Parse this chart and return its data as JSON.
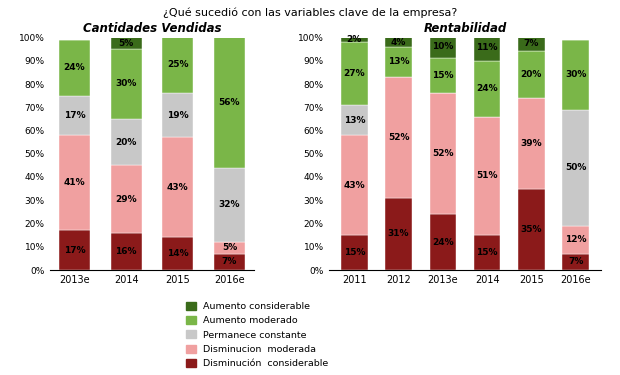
{
  "title": "¿Qué sucedió con las variables clave de la empresa?",
  "left_title": "Cantidades Vendidas",
  "right_title": "Rentabilidad",
  "categories_left": [
    "2013e",
    "2014",
    "2015",
    "2016e"
  ],
  "categories_right": [
    "2011",
    "2012",
    "2013e",
    "2014",
    "2015",
    "2016e"
  ],
  "segments": [
    "Disminución considerable",
    "Disminucion moderada",
    "Permanece constante",
    "Aumento moderado",
    "Aumento considerable"
  ],
  "colors": [
    "#8b1a1a",
    "#f0a0a0",
    "#c8c8c8",
    "#7ab648",
    "#3a6b1a"
  ],
  "left_data": [
    [
      17,
      41,
      17,
      24,
      0
    ],
    [
      16,
      29,
      20,
      30,
      5
    ],
    [
      14,
      43,
      19,
      25,
      0
    ],
    [
      7,
      5,
      32,
      56,
      0
    ]
  ],
  "right_data": [
    [
      15,
      43,
      13,
      27,
      2
    ],
    [
      31,
      52,
      0,
      13,
      4
    ],
    [
      24,
      52,
      0,
      15,
      10
    ],
    [
      15,
      51,
      0,
      24,
      11
    ],
    [
      35,
      39,
      0,
      20,
      7
    ],
    [
      7,
      12,
      50,
      30,
      0
    ]
  ],
  "background_color": "#ffffff",
  "legend_labels": [
    "Aumento considerable",
    "Aumento moderado",
    "Permanece constante",
    "Disminucion  moderada",
    "Disminución  considerable"
  ],
  "legend_colors": [
    "#3a6b1a",
    "#7ab648",
    "#c8c8c8",
    "#f0a0a0",
    "#8b1a1a"
  ]
}
